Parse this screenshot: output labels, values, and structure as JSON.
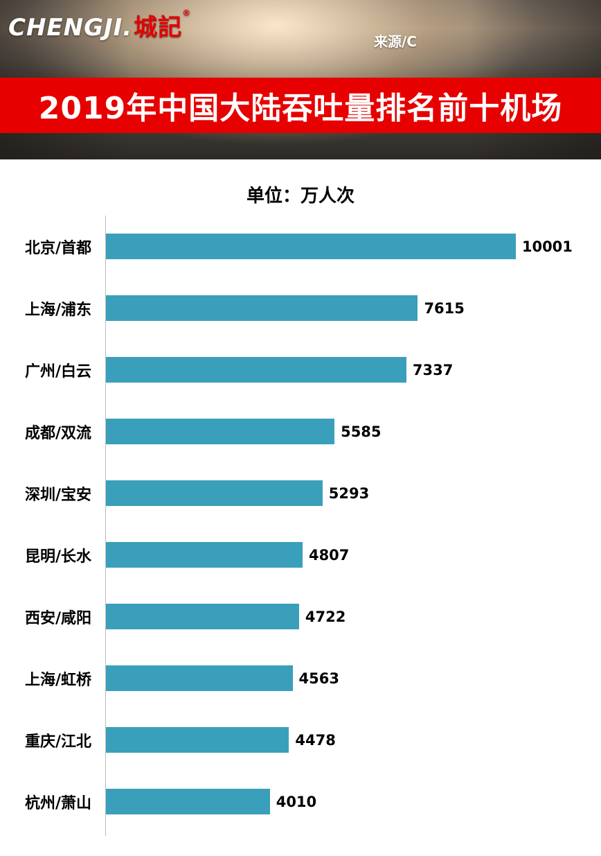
{
  "header": {
    "logo_text": "CHENGJI.",
    "logo_cn": "城記",
    "logo_reg": "®",
    "source_label": "来源/C",
    "banner_title": "2019年中国大陆吞吐量排名前十机场",
    "banner_color": "#e60000"
  },
  "unit_title": "单位：万人次",
  "chart_data": {
    "type": "bar",
    "orientation": "horizontal",
    "title": "2019年中国大陆吞吐量排名前十机场",
    "unit": "万人次",
    "categories": [
      "北京/首都",
      "上海/浦东",
      "广州/白云",
      "成都/双流",
      "深圳/宝安",
      "昆明/长水",
      "西安/咸阳",
      "上海/虹桥",
      "重庆/江北",
      "杭州/萧山"
    ],
    "values": [
      10001,
      7615,
      7337,
      5585,
      5293,
      4807,
      4722,
      4563,
      4478,
      4010
    ],
    "xlim": [
      0,
      10001
    ],
    "bar_color": "#3a9fba",
    "grid": false,
    "legend": false,
    "value_labels": "right-of-bar"
  }
}
